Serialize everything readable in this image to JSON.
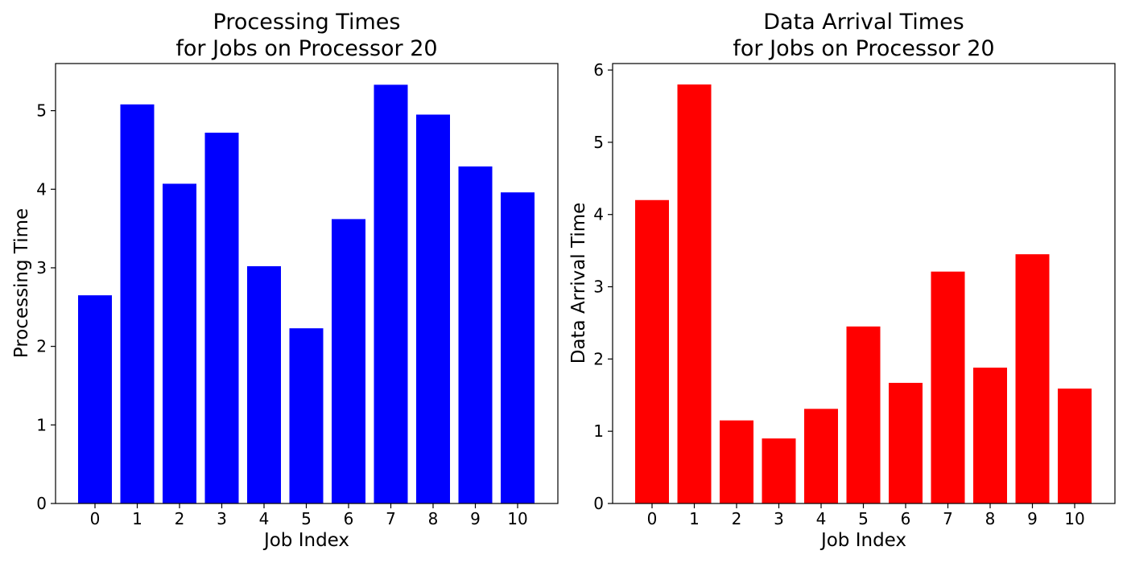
{
  "chart_data": [
    {
      "type": "bar",
      "title": [
        "Processing Times",
        "for Jobs on Processor 20"
      ],
      "xlabel": "Job Index",
      "ylabel": "Processing Time",
      "categories": [
        "0",
        "1",
        "2",
        "3",
        "4",
        "5",
        "6",
        "7",
        "8",
        "9",
        "10"
      ],
      "values": [
        2.65,
        5.08,
        4.07,
        4.72,
        3.02,
        2.23,
        3.62,
        5.33,
        4.95,
        4.29,
        3.96
      ],
      "color": "#0000ff",
      "ylim": [
        0,
        5.6
      ],
      "yticks": [
        0,
        1,
        2,
        3,
        4,
        5
      ],
      "grid": false
    },
    {
      "type": "bar",
      "title": [
        "Data Arrival Times",
        "for Jobs on Processor 20"
      ],
      "xlabel": "Job Index",
      "ylabel": "Data Arrival Time",
      "categories": [
        "0",
        "1",
        "2",
        "3",
        "4",
        "5",
        "6",
        "7",
        "8",
        "9",
        "10"
      ],
      "values": [
        4.2,
        5.8,
        1.15,
        0.9,
        1.31,
        2.45,
        1.67,
        3.21,
        1.88,
        3.45,
        1.59
      ],
      "color": "#ff0000",
      "ylim": [
        0,
        6.09
      ],
      "yticks": [
        0,
        1,
        2,
        3,
        4,
        5,
        6
      ],
      "grid": false
    }
  ]
}
